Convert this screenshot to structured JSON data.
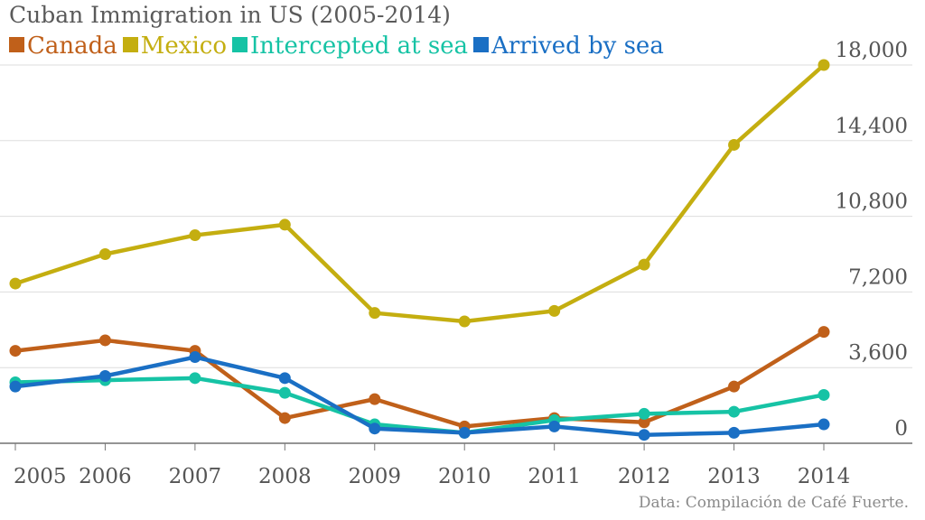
{
  "chart_data": {
    "type": "line",
    "title": "Cuban Immigration in US (2005-2014)",
    "source": "Data: Compilación de Café Fuerte.",
    "x": [
      "2005",
      "2006",
      "2007",
      "2008",
      "2009",
      "2010",
      "2011",
      "2012",
      "2013",
      "2014"
    ],
    "ylim": [
      0,
      18000
    ],
    "yticks": [
      "0",
      "3,600",
      "7,200",
      "10,800",
      "14,400",
      "18,000"
    ],
    "ytick_values": [
      0,
      3600,
      7200,
      10800,
      14400,
      18000
    ],
    "grid": true,
    "legend_position": "top-left",
    "y_axis_side": "right",
    "series": [
      {
        "name": "Canada",
        "color": "#c0601a",
        "values": [
          4400,
          4900,
          4400,
          1200,
          2100,
          800,
          1200,
          1000,
          2700,
          5300
        ]
      },
      {
        "name": "Mexico",
        "color": "#c4ae10",
        "values": [
          7600,
          9000,
          9900,
          10400,
          6200,
          5800,
          6300,
          8500,
          14200,
          18000
        ]
      },
      {
        "name": "Intercepted at sea",
        "color": "#16c3a5",
        "values": [
          2900,
          3000,
          3100,
          2400,
          900,
          500,
          1100,
          1400,
          1500,
          2300
        ]
      },
      {
        "name": "Arrived by sea",
        "color": "#1a6fc4",
        "values": [
          2700,
          3200,
          4100,
          3100,
          700,
          500,
          800,
          400,
          500,
          900
        ]
      }
    ]
  }
}
